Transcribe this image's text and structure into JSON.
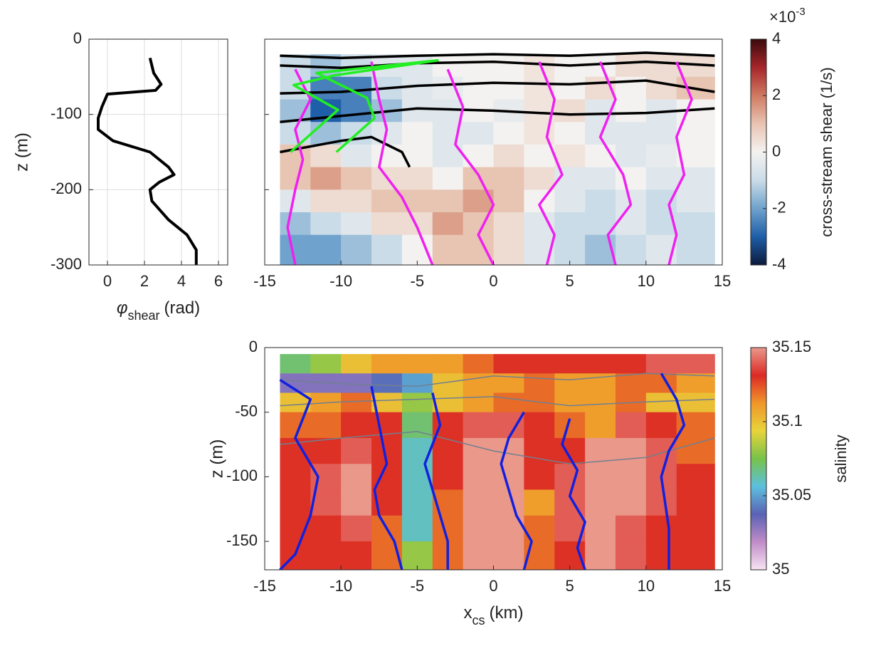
{
  "chart_data": [
    {
      "type": "line",
      "xlim": [
        -1,
        6.5
      ],
      "ylim": [
        -300,
        0
      ],
      "xticks": [
        0,
        2,
        4,
        6
      ],
      "yticks": [
        -300,
        -200,
        -100,
        0
      ],
      "grid": true,
      "xlabel": {
        "symbol": "φ",
        "subscript": "shear",
        "unit": "(rad)"
      },
      "ylabel": "z (m)",
      "series": [
        {
          "color": "#000000",
          "x": [
            2.3,
            2.5,
            2.9,
            2.6,
            0,
            -0.3,
            -0.5,
            -0.5,
            0.3,
            2.3,
            3.3,
            3.6,
            2.8,
            2.3,
            2.4,
            3.3,
            4.3,
            4.8,
            4.8
          ],
          "values": [
            -25,
            -45,
            -60,
            -68,
            -73,
            -90,
            -105,
            -120,
            -135,
            -150,
            -170,
            -180,
            -190,
            -200,
            -215,
            -240,
            -260,
            -280,
            -300
          ]
        }
      ]
    },
    {
      "type": "contour",
      "xlim": [
        -15,
        15
      ],
      "ylim": [
        -300,
        0
      ],
      "xticks": [
        -15,
        -10,
        -5,
        0,
        5,
        10,
        15
      ],
      "yticks": [
        -300,
        -200,
        -100,
        0
      ],
      "x_bins": [
        -14,
        -12,
        -10,
        -8,
        -6,
        -4,
        -2,
        0,
        2,
        4,
        6,
        8,
        10,
        12,
        14.5
      ],
      "z_bins": [
        -20,
        -50,
        -80,
        -110,
        -140,
        -170,
        -200,
        -230,
        -260,
        -300
      ],
      "values": [
        [
          -1,
          -1.5,
          -1,
          -0.5,
          -0.5,
          0,
          0,
          0,
          0.3,
          0,
          0,
          0.5,
          0.5,
          0.5
        ],
        [
          -1,
          -2.5,
          -2.5,
          -1,
          -0.5,
          -0.3,
          0,
          0,
          0.3,
          0,
          0.5,
          0,
          0.5,
          1
        ],
        [
          -1.5,
          -3,
          -2.5,
          -1.5,
          -0.5,
          -0.5,
          0,
          -0.3,
          0.3,
          0.5,
          -0.5,
          0,
          -0.5,
          0
        ],
        [
          -1,
          -1.5,
          -1,
          -0.5,
          0,
          -0.5,
          -0.5,
          0,
          0.3,
          0,
          -0.5,
          -0.5,
          -0.5,
          0
        ],
        [
          1,
          0.5,
          -0.5,
          0,
          0,
          -0.5,
          0,
          0.5,
          0,
          0.3,
          0,
          -0.5,
          -0.3,
          0
        ],
        [
          1,
          1.5,
          1,
          0.5,
          0.5,
          0,
          1,
          1,
          0.5,
          -0.5,
          -0.5,
          0,
          -0.5,
          -0.5
        ],
        [
          -0.5,
          0.5,
          0.5,
          1,
          1,
          1,
          1.5,
          1,
          0,
          -0.5,
          -1,
          -0.5,
          -1,
          -0.5
        ],
        [
          -1.5,
          -1,
          -0.5,
          0.5,
          0.5,
          1.5,
          1,
          0.5,
          -0.5,
          -1,
          -1,
          -0.5,
          -1,
          -1
        ],
        [
          -2,
          -2,
          -1.5,
          -1,
          0,
          1,
          1,
          0.5,
          -0.5,
          -1,
          -1.5,
          -1,
          -0.5,
          -1
        ]
      ],
      "colorbar": {
        "clim": [
          -4,
          4
        ],
        "ticks": [
          -4,
          -2,
          0,
          2,
          4
        ],
        "label": "cross-stream shear (1/s)",
        "multiplier": {
          "base": "×10",
          "exponent": "-3"
        },
        "colormap": [
          "#0c1a3c",
          "#1f5ea8",
          "#6fa2cc",
          "#cadce7",
          "#f4f2f0",
          "#e8c4b2",
          "#d07a62",
          "#a6262a",
          "#3a0a0c"
        ]
      },
      "series": [
        {
          "color": "#000000",
          "x": [
            -14,
            -10,
            -5,
            0,
            5,
            10,
            14.5
          ],
          "values": [
            -22,
            -25,
            -22,
            -20,
            -22,
            -18,
            -22
          ]
        },
        {
          "color": "#000000",
          "x": [
            -14,
            -10,
            -5,
            0,
            5,
            10,
            14.5
          ],
          "values": [
            -35,
            -38,
            -32,
            -30,
            -35,
            -30,
            -35
          ]
        },
        {
          "color": "#000000",
          "x": [
            -14,
            -10,
            -5,
            0,
            5,
            10,
            14.5
          ],
          "values": [
            -72,
            -70,
            -62,
            -58,
            -60,
            -55,
            -70
          ]
        },
        {
          "color": "#000000",
          "x": [
            -14,
            -10,
            -5,
            0,
            5,
            10,
            14.5
          ],
          "values": [
            -110,
            -102,
            -92,
            -95,
            -100,
            -98,
            -92
          ]
        },
        {
          "color": "#000000",
          "x": [
            -14,
            -10,
            -8,
            -6,
            -5.5
          ],
          "values": [
            -150,
            -135,
            -130,
            -150,
            -170
          ]
        },
        {
          "color": "#f020f0",
          "x": [
            -13,
            -12,
            -13,
            -12.5,
            -13,
            -13.5,
            -13
          ],
          "values": [
            -40,
            -80,
            -120,
            -160,
            -200,
            -250,
            -300
          ]
        },
        {
          "color": "#f020f0",
          "x": [
            -8,
            -7.5,
            -7,
            -7.5,
            -6,
            -5,
            -4
          ],
          "values": [
            -30,
            -80,
            -120,
            -170,
            -210,
            -250,
            -300
          ]
        },
        {
          "color": "#f020f0",
          "x": [
            -3,
            -2,
            -2.5,
            -1,
            0,
            -1,
            0
          ],
          "values": [
            -40,
            -90,
            -140,
            -180,
            -220,
            -260,
            -300
          ]
        },
        {
          "color": "#f020f0",
          "x": [
            3,
            4,
            3.5,
            4.5,
            3,
            4,
            3.5
          ],
          "values": [
            -30,
            -80,
            -130,
            -180,
            -220,
            -260,
            -300
          ]
        },
        {
          "color": "#f020f0",
          "x": [
            7,
            8,
            7,
            8.5,
            9,
            7.5,
            8
          ],
          "values": [
            -30,
            -80,
            -130,
            -180,
            -220,
            -260,
            -300
          ]
        },
        {
          "color": "#f020f0",
          "x": [
            12,
            13,
            12,
            12.5,
            11.5,
            12,
            11.5
          ],
          "values": [
            -30,
            -80,
            -130,
            -180,
            -220,
            -260,
            -300
          ]
        },
        {
          "color": "#22ee22",
          "x": [
            -13.3,
            -10.2,
            -13.1,
            -10.4,
            -3.6
          ],
          "values": [
            -150,
            -94,
            -61,
            -48,
            -28
          ]
        },
        {
          "color": "#22ee22",
          "x": [
            -10.3,
            -7.8,
            -8.3,
            -11.6,
            -3.6
          ],
          "values": [
            -150,
            -105,
            -78,
            -45,
            -28
          ]
        }
      ]
    },
    {
      "type": "contour",
      "xlim": [
        -15,
        15
      ],
      "ylim": [
        -172,
        0
      ],
      "xticks": [
        -15,
        -10,
        -5,
        0,
        5,
        10,
        15
      ],
      "yticks": [
        -150,
        -100,
        -50,
        0
      ],
      "xlabel": {
        "symbol": "x",
        "subscript": "cs",
        "unit": "(km)"
      },
      "ylabel": "z (m)",
      "x_bins": [
        -14,
        -12,
        -10,
        -8,
        -6,
        -4,
        -2,
        0,
        2,
        4,
        6,
        8,
        10,
        12,
        14.5
      ],
      "z_bins": [
        -5,
        -20,
        -35,
        -50,
        -70,
        -90,
        -110,
        -130,
        -150,
        -172
      ],
      "values": [
        [
          35.07,
          35.08,
          35.1,
          35.11,
          35.11,
          35.11,
          35.12,
          35.13,
          35.13,
          35.13,
          35.13,
          35.13,
          35.14,
          35.14
        ],
        [
          35.03,
          35.03,
          35.03,
          35.04,
          35.05,
          35.1,
          35.11,
          35.11,
          35.12,
          35.11,
          35.11,
          35.12,
          35.12,
          35.11
        ],
        [
          35.1,
          35.11,
          35.12,
          35.1,
          35.08,
          35.1,
          35.11,
          35.12,
          35.12,
          35.11,
          35.11,
          35.12,
          35.1,
          35.1
        ],
        [
          35.12,
          35.12,
          35.13,
          35.13,
          35.07,
          35.13,
          35.14,
          35.14,
          35.13,
          35.12,
          35.11,
          35.14,
          35.13,
          35.12
        ],
        [
          35.13,
          35.13,
          35.14,
          35.13,
          35.06,
          35.13,
          35.15,
          35.15,
          35.13,
          35.13,
          35.15,
          35.15,
          35.14,
          35.12
        ],
        [
          35.13,
          35.14,
          35.15,
          35.13,
          35.06,
          35.13,
          35.15,
          35.15,
          35.13,
          35.14,
          35.15,
          35.15,
          35.14,
          35.13
        ],
        [
          35.13,
          35.14,
          35.15,
          35.13,
          35.06,
          35.12,
          35.15,
          35.15,
          35.11,
          35.14,
          35.15,
          35.15,
          35.14,
          35.13
        ],
        [
          35.13,
          35.13,
          35.14,
          35.12,
          35.06,
          35.12,
          35.15,
          35.15,
          35.12,
          35.14,
          35.15,
          35.14,
          35.13,
          35.13
        ],
        [
          35.13,
          35.13,
          35.13,
          35.12,
          35.08,
          35.12,
          35.15,
          35.15,
          35.12,
          35.13,
          35.15,
          35.14,
          35.13,
          35.13
        ]
      ],
      "colorbar": {
        "clim": [
          35,
          35.15
        ],
        "ticks": [
          35,
          35.05,
          35.1,
          35.15
        ],
        "label": "salinity",
        "colormap": [
          "#f6e4f3",
          "#c18cc8",
          "#5a62b4",
          "#5cc0de",
          "#78c24a",
          "#e8d43a",
          "#f0962a",
          "#dc2a26",
          "#e9988a"
        ]
      },
      "series": [
        {
          "color": "#708090",
          "x": [
            -14,
            -10,
            -5,
            0,
            5,
            10,
            14.5
          ],
          "values": [
            -25,
            -28,
            -30,
            -22,
            -25,
            -20,
            -22
          ]
        },
        {
          "color": "#708090",
          "x": [
            -14,
            -10,
            -5,
            0,
            5,
            10,
            14.5
          ],
          "values": [
            -45,
            -42,
            -40,
            -38,
            -45,
            -42,
            -40
          ]
        },
        {
          "color": "#708090",
          "x": [
            -14,
            -10,
            -5,
            0,
            5,
            10,
            14.5
          ],
          "values": [
            -75,
            -70,
            -65,
            -80,
            -90,
            -85,
            -70
          ]
        },
        {
          "color": "#1020e0",
          "x": [
            -14,
            -12,
            -13,
            -11.5,
            -12,
            -13,
            -14
          ],
          "values": [
            -25,
            -40,
            -70,
            -100,
            -130,
            -160,
            -172
          ]
        },
        {
          "color": "#1020e0",
          "x": [
            -8,
            -7.5,
            -7,
            -7.8,
            -7.5,
            -6.5,
            -6
          ],
          "values": [
            -30,
            -60,
            -90,
            -110,
            -130,
            -150,
            -172
          ]
        },
        {
          "color": "#1020e0",
          "x": [
            -4,
            -3.5,
            -4.5,
            -4,
            -3.5,
            -3,
            -3
          ],
          "values": [
            -35,
            -60,
            -90,
            -110,
            -130,
            -150,
            -172
          ]
        },
        {
          "color": "#1020e0",
          "x": [
            2,
            1,
            0.5,
            1,
            1.5,
            2.5,
            2
          ],
          "values": [
            -50,
            -70,
            -90,
            -110,
            -130,
            -150,
            -172
          ]
        },
        {
          "color": "#1020e0",
          "x": [
            5,
            4.5,
            5.5,
            5,
            6,
            5.5,
            6
          ],
          "values": [
            -55,
            -75,
            -95,
            -115,
            -135,
            -155,
            -172
          ]
        },
        {
          "color": "#1020e0",
          "x": [
            11,
            12,
            12.5,
            11.5,
            11,
            11.5,
            11.5
          ],
          "values": [
            -20,
            -40,
            -60,
            -80,
            -100,
            -140,
            -172
          ]
        }
      ]
    }
  ]
}
